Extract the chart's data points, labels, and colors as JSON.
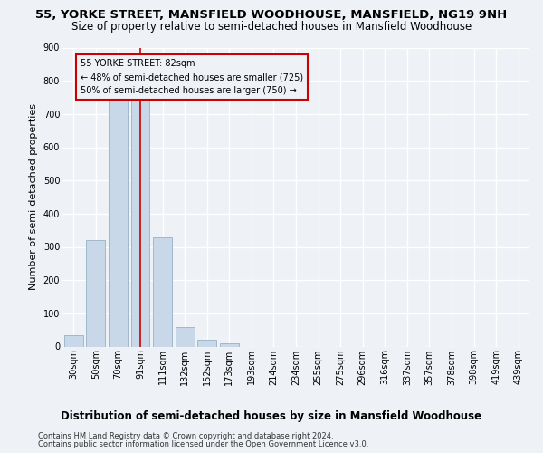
{
  "title": "55, YORKE STREET, MANSFIELD WOODHOUSE, MANSFIELD, NG19 9NH",
  "subtitle": "Size of property relative to semi-detached houses in Mansfield Woodhouse",
  "xlabel_bottom": "Distribution of semi-detached houses by size in Mansfield Woodhouse",
  "ylabel": "Number of semi-detached properties",
  "footnote1": "Contains HM Land Registry data © Crown copyright and database right 2024.",
  "footnote2": "Contains public sector information licensed under the Open Government Licence v3.0.",
  "bar_labels": [
    "30sqm",
    "50sqm",
    "70sqm",
    "91sqm",
    "111sqm",
    "132sqm",
    "152sqm",
    "173sqm",
    "193sqm",
    "214sqm",
    "234sqm",
    "255sqm",
    "275sqm",
    "296sqm",
    "316sqm",
    "337sqm",
    "357sqm",
    "378sqm",
    "398sqm",
    "419sqm",
    "439sqm"
  ],
  "bar_values": [
    35,
    320,
    740,
    740,
    330,
    60,
    20,
    10,
    0,
    0,
    0,
    0,
    0,
    0,
    0,
    0,
    0,
    0,
    0,
    0,
    0
  ],
  "bar_color": "#c8d8e8",
  "bar_edge_color": "#a0b8cc",
  "property_line_label": "55 YORKE STREET: 82sqm",
  "annotation_line1": "← 48% of semi-detached houses are smaller (725)",
  "annotation_line2": "50% of semi-detached houses are larger (750) →",
  "annotation_box_color": "#cc0000",
  "vline_color": "#cc0000",
  "ylim": [
    0,
    900
  ],
  "yticks": [
    0,
    100,
    200,
    300,
    400,
    500,
    600,
    700,
    800,
    900
  ],
  "background_color": "#eef2f6",
  "grid_color": "#ffffff",
  "title_fontsize": 9.5,
  "subtitle_fontsize": 8.5,
  "ylabel_fontsize": 8,
  "annotation_fontsize": 7,
  "xlabel_bottom_fontsize": 8.5,
  "footnote_fontsize": 6,
  "tick_fontsize": 7
}
